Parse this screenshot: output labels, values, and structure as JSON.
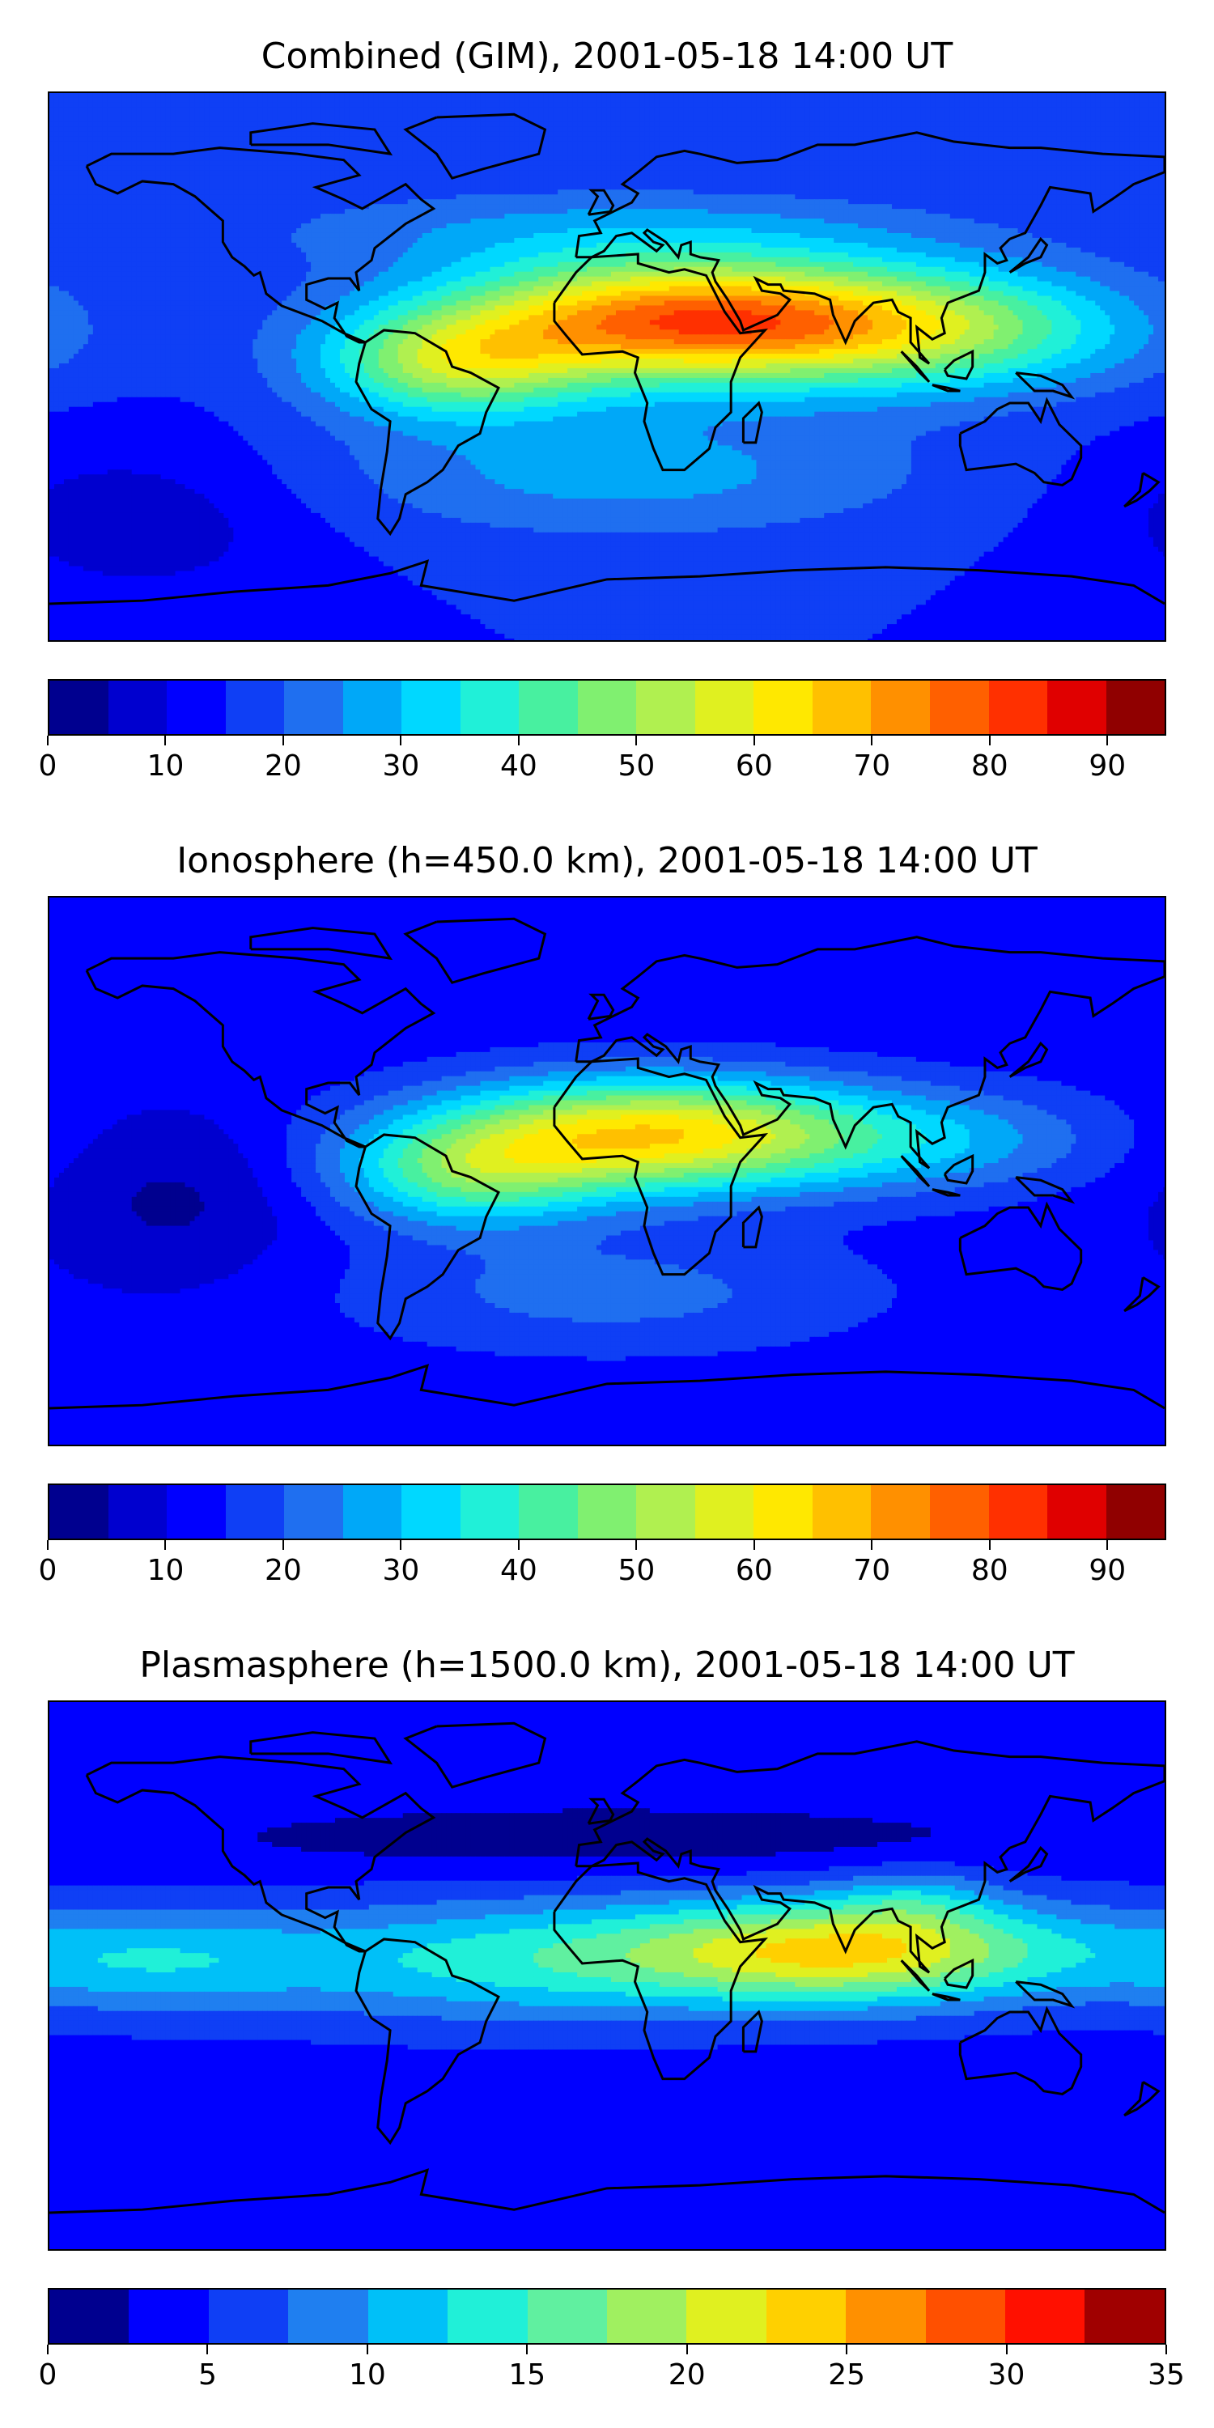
{
  "panels": [
    {
      "id": "combined",
      "title": "Combined (GIM), 2001-05-18 14:00 UT",
      "colorbar": {
        "min": 0,
        "max": 95,
        "colors": [
          "#00008f",
          "#0000cf",
          "#0000ff",
          "#0f3ff5",
          "#1f6ff0",
          "#00a8f8",
          "#00d8ff",
          "#20f0d8",
          "#48f0a0",
          "#80f070",
          "#b0f050",
          "#e0f020",
          "#ffe800",
          "#ffc000",
          "#ff9000",
          "#ff6000",
          "#ff3000",
          "#e00000",
          "#900000"
        ],
        "ticks": [
          0,
          10,
          20,
          30,
          40,
          50,
          60,
          70,
          80,
          90
        ],
        "tick_labels": [
          "0",
          "10",
          "20",
          "30",
          "40",
          "50",
          "60",
          "70",
          "80",
          "90"
        ]
      },
      "field": {
        "background": 15,
        "blobs": [
          {
            "lon": 25,
            "lat": 15,
            "sx": 55,
            "sy": 14,
            "amp": 62
          },
          {
            "lon": -50,
            "lat": 0,
            "sx": 30,
            "sy": 12,
            "amp": 30
          },
          {
            "lon": 110,
            "lat": 12,
            "sx": 45,
            "sy": 14,
            "amp": 25
          },
          {
            "lon": 5,
            "lat": -35,
            "sx": 70,
            "sy": 15,
            "amp": 12
          },
          {
            "lon": 0,
            "lat": 45,
            "sx": 80,
            "sy": 10,
            "amp": 10
          },
          {
            "lon": -150,
            "lat": -50,
            "sx": 40,
            "sy": 20,
            "amp": -8
          }
        ]
      }
    },
    {
      "id": "ionosphere",
      "title": "Ionosphere  (h=450.0 km), 2001-05-18 14:00 UT",
      "colorbar": {
        "min": 0,
        "max": 95,
        "colors": [
          "#00008f",
          "#0000cf",
          "#0000ff",
          "#0f3ff5",
          "#1f6ff0",
          "#00a8f8",
          "#00d8ff",
          "#20f0d8",
          "#48f0a0",
          "#80f070",
          "#b0f050",
          "#e0f020",
          "#ffe800",
          "#ffc000",
          "#ff9000",
          "#ff6000",
          "#ff3000",
          "#e00000",
          "#900000"
        ],
        "ticks": [
          0,
          10,
          20,
          30,
          40,
          50,
          60,
          70,
          80,
          90
        ],
        "tick_labels": [
          "0",
          "10",
          "20",
          "30",
          "40",
          "50",
          "60",
          "70",
          "80",
          "90"
        ]
      },
      "field": {
        "background": 12,
        "blobs": [
          {
            "lon": 15,
            "lat": 12,
            "sx": 50,
            "sy": 13,
            "amp": 52
          },
          {
            "lon": -45,
            "lat": -2,
            "sx": 30,
            "sy": 12,
            "amp": 25
          },
          {
            "lon": 110,
            "lat": 10,
            "sx": 40,
            "sy": 12,
            "amp": 12
          },
          {
            "lon": 0,
            "lat": -40,
            "sx": 60,
            "sy": 14,
            "amp": 10
          },
          {
            "lon": -140,
            "lat": -10,
            "sx": 30,
            "sy": 20,
            "amp": -8
          }
        ]
      }
    },
    {
      "id": "plasmasphere",
      "title": "Plasmasphere (h=1500.0 km), 2001-05-18 14:00 UT",
      "colorbar": {
        "min": 0,
        "max": 35,
        "colors": [
          "#00008f",
          "#0000ff",
          "#0f3ff5",
          "#1f7ff0",
          "#00c0f8",
          "#20f0d8",
          "#60f0a0",
          "#a0f060",
          "#e0f020",
          "#ffd000",
          "#ff9000",
          "#ff5000",
          "#ff1000",
          "#a00000"
        ],
        "ticks": [
          0,
          5,
          10,
          15,
          20,
          25,
          30,
          35
        ],
        "tick_labels": [
          "0",
          "5",
          "10",
          "15",
          "20",
          "25",
          "30",
          "35"
        ]
      },
      "field": {
        "background": 4,
        "blobs": [
          {
            "lon": 80,
            "lat": 8,
            "sx": 50,
            "sy": 12,
            "amp": 18
          },
          {
            "lon": 100,
            "lat": 25,
            "sx": 18,
            "sy": 8,
            "amp": 4
          },
          {
            "lon": -30,
            "lat": 5,
            "sx": 60,
            "sy": 14,
            "amp": 9
          },
          {
            "lon": -150,
            "lat": 5,
            "sx": 40,
            "sy": 12,
            "amp": 7
          },
          {
            "lon": 0,
            "lat": 45,
            "sx": 100,
            "sy": 8,
            "amp": -3
          }
        ]
      }
    }
  ]
}
